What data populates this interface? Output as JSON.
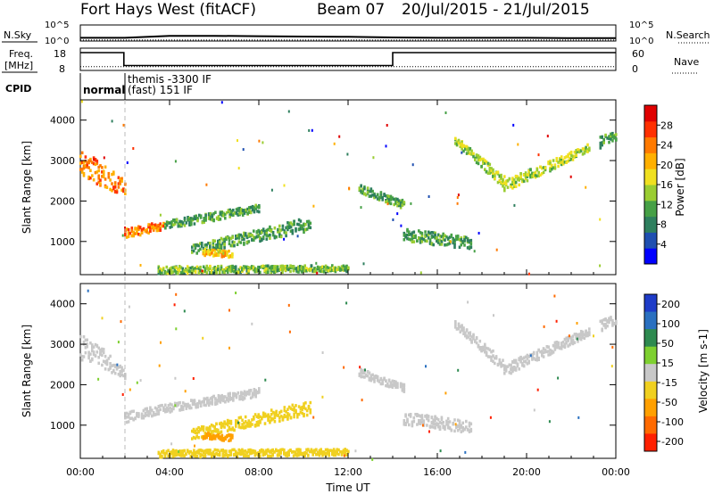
{
  "header": {
    "station": "Fort Hays West (fitACF)",
    "beam": "Beam 07",
    "dates": "20/Jul/2015 - 21/Jul/2015"
  },
  "noise_panel": {
    "left_label": "N.Sky",
    "right_label": "N.Search",
    "left_ticks": [
      "10^5",
      "10^0"
    ],
    "right_ticks": [
      "10^5",
      "10^0"
    ]
  },
  "freq_panel": {
    "label_line1": "Freq.",
    "label_line2": "[MHz]",
    "right_label": "Nave",
    "left_ticks": [
      "18",
      "8"
    ],
    "right_ticks": [
      "60",
      "0"
    ]
  },
  "cpid": {
    "label": "CPID",
    "segments": [
      "normal",
      "themis -3300 IF",
      "(fast) 151 IF"
    ]
  },
  "time_axis": {
    "label": "Time UT",
    "ticks": [
      "00:00",
      "04:00",
      "08:00",
      "12:00",
      "16:00",
      "20:00",
      "00:00"
    ]
  },
  "range_axis": {
    "label": "Slant Range [km]",
    "ticks": [
      "1000",
      "2000",
      "3000",
      "4000"
    ]
  },
  "power_scale": {
    "label": "Power [dB]",
    "ticks": [
      "4",
      "8",
      "12",
      "16",
      "20",
      "24",
      "28"
    ],
    "colors": [
      "#0000ff",
      "#1f4fb0",
      "#2e7f5e",
      "#46a046",
      "#9acd32",
      "#f0e020",
      "#ffb000",
      "#ff7a00",
      "#ff3000",
      "#e00000"
    ]
  },
  "velocity_scale": {
    "label": "Velocity [m s-1]",
    "ticks": [
      "200",
      "100",
      "50",
      "15",
      "-15",
      "-50",
      "-100",
      "-200"
    ],
    "colors": [
      "#1e3cc8",
      "#2a70c0",
      "#2e8a50",
      "#7ed030",
      "#c8c8c8",
      "#f0d020",
      "#ffa000",
      "#ff6a00",
      "#ff2000"
    ]
  },
  "chart_data": [
    {
      "type": "line",
      "title": "N.Sky / N.Search",
      "x": [
        0,
        2,
        4,
        6,
        8,
        10,
        12,
        14,
        16,
        18,
        20,
        22,
        24
      ],
      "series": [
        {
          "name": "N.Sky",
          "values": [
            1.0,
            1.0,
            1.6,
            1.6,
            1.5,
            1.4,
            1.3,
            1.1,
            1.0,
            1.0,
            1.0,
            0.9,
            0.9
          ]
        },
        {
          "name": "N.Search",
          "values": [
            0.3,
            0.3,
            0.3,
            0.3,
            0.3,
            0.3,
            0.3,
            0.3,
            0.3,
            0.3,
            0.3,
            0.3,
            0.3
          ]
        }
      ],
      "ylim": [
        0,
        5
      ],
      "xlim": [
        0,
        24
      ]
    },
    {
      "type": "line",
      "title": "Freq. / Nave",
      "x": [
        0,
        1.95,
        1.95,
        14.0,
        14.0,
        24
      ],
      "series": [
        {
          "name": "Freq.",
          "values": [
            16.0,
            16.0,
            10.2,
            10.2,
            16.0,
            16.0
          ]
        },
        {
          "name": "Nave",
          "values": [
            10,
            10,
            10,
            10,
            10,
            10
          ]
        }
      ],
      "ylim": [
        8,
        18
      ],
      "xlim": [
        0,
        24
      ]
    },
    {
      "type": "heatmap",
      "title": "Power [dB]",
      "xlabel": "Time UT",
      "ylabel": "Slant Range [km]",
      "xlim": [
        0,
        24
      ],
      "ylim": [
        180,
        4500
      ],
      "colorbar": [
        0,
        30
      ],
      "regions": [
        {
          "t": [
            0.0,
            2.0
          ],
          "r_start": [
            3300,
            2500
          ],
          "r_end": [
            2600,
            2100
          ],
          "value": 22
        },
        {
          "t": [
            2.0,
            3.8
          ],
          "r_start": [
            1050,
            1300
          ],
          "r_end": [
            1300,
            1500
          ],
          "value": 22
        },
        {
          "t": [
            3.8,
            8.0
          ],
          "r_start": [
            1300,
            1700
          ],
          "r_end": [
            1500,
            1900
          ],
          "value": 10
        },
        {
          "t": [
            5.0,
            10.3
          ],
          "r_start": [
            650,
            1250
          ],
          "r_end": [
            900,
            1600
          ],
          "value": 10
        },
        {
          "t": [
            5.5,
            6.8
          ],
          "r_start": [
            650,
            600
          ],
          "r_end": [
            800,
            750
          ],
          "value": 18
        },
        {
          "t": [
            3.5,
            12.0
          ],
          "r_start": [
            200,
            250
          ],
          "r_end": [
            380,
            400
          ],
          "value": 12
        },
        {
          "t": [
            12.5,
            14.5
          ],
          "r_start": [
            2200,
            1800
          ],
          "r_end": [
            2400,
            2000
          ],
          "value": 10
        },
        {
          "t": [
            14.5,
            17.5
          ],
          "r_start": [
            1000,
            800
          ],
          "r_end": [
            1300,
            1100
          ],
          "value": 10
        },
        {
          "t": [
            16.8,
            19.0
          ],
          "r_start": [
            3400,
            2300
          ],
          "r_end": [
            3600,
            2600
          ],
          "value": 14
        },
        {
          "t": [
            19.0,
            22.8
          ],
          "r_start": [
            2200,
            3200
          ],
          "r_end": [
            2500,
            3400
          ],
          "value": 14
        },
        {
          "t": [
            23.3,
            24.0
          ],
          "r_start": [
            3300,
            3500
          ],
          "r_end": [
            3600,
            3700
          ],
          "value": 10
        }
      ]
    },
    {
      "type": "heatmap",
      "title": "Velocity [m s-1]",
      "xlabel": "Time UT",
      "ylabel": "Slant Range [km]",
      "xlim": [
        0,
        24
      ],
      "ylim": [
        180,
        4500
      ],
      "colorbar": [
        -200,
        200
      ],
      "regions": [
        {
          "t": [
            0.0,
            2.0
          ],
          "r_start": [
            3300,
            2500
          ],
          "r_end": [
            2600,
            2100
          ],
          "value": 0
        },
        {
          "t": [
            2.0,
            3.8
          ],
          "r_start": [
            1050,
            1300
          ],
          "r_end": [
            1300,
            1500
          ],
          "value": 0
        },
        {
          "t": [
            3.8,
            8.0
          ],
          "r_start": [
            1300,
            1700
          ],
          "r_end": [
            1500,
            1900
          ],
          "value": 0
        },
        {
          "t": [
            5.0,
            10.3
          ],
          "r_start": [
            650,
            1250
          ],
          "r_end": [
            900,
            1600
          ],
          "value": -60
        },
        {
          "t": [
            5.5,
            6.8
          ],
          "r_start": [
            650,
            600
          ],
          "r_end": [
            800,
            750
          ],
          "value": -80
        },
        {
          "t": [
            3.5,
            12.0
          ],
          "r_start": [
            200,
            250
          ],
          "r_end": [
            380,
            400
          ],
          "value": -30
        },
        {
          "t": [
            12.5,
            14.5
          ],
          "r_start": [
            2200,
            1800
          ],
          "r_end": [
            2400,
            2000
          ],
          "value": 0
        },
        {
          "t": [
            14.5,
            17.5
          ],
          "r_start": [
            1000,
            800
          ],
          "r_end": [
            1300,
            1100
          ],
          "value": 0
        },
        {
          "t": [
            16.8,
            19.0
          ],
          "r_start": [
            3400,
            2300
          ],
          "r_end": [
            3600,
            2600
          ],
          "value": 0
        },
        {
          "t": [
            19.0,
            22.8
          ],
          "r_start": [
            2200,
            3200
          ],
          "r_end": [
            2500,
            3400
          ],
          "value": 0
        },
        {
          "t": [
            23.3,
            24.0
          ],
          "r_start": [
            3300,
            3500
          ],
          "r_end": [
            3600,
            3700
          ],
          "value": 0
        }
      ]
    }
  ]
}
